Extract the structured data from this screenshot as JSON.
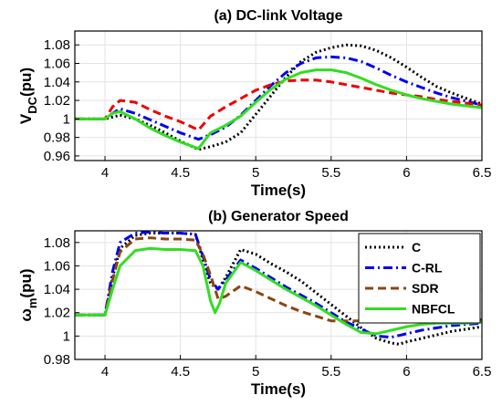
{
  "chart_data": [
    {
      "type": "line",
      "title": "(a) DC-link Voltage",
      "xlabel": "Time(s)",
      "ylabel": "V_DC(pu)",
      "xlim": [
        3.8,
        6.5
      ],
      "ylim": [
        0.955,
        1.095
      ],
      "xticks": [
        "4",
        "4.5",
        "5",
        "5.5",
        "6",
        "6.5"
      ],
      "yticks": [
        "0.96",
        "0.98",
        "1",
        "1.02",
        "1.04",
        "1.06",
        "1.08"
      ],
      "grid": true,
      "series": [
        {
          "color": "#000000",
          "dash": "dot",
          "x": [
            3.8,
            4.0,
            4.05,
            4.1,
            4.2,
            4.3,
            4.4,
            4.5,
            4.62,
            4.7,
            4.8,
            4.9,
            5.0,
            5.1,
            5.2,
            5.3,
            5.4,
            5.5,
            5.6,
            5.7,
            5.8,
            5.9,
            6.0,
            6.1,
            6.2,
            6.3,
            6.4,
            6.5
          ],
          "values": [
            1.0,
            1.0,
            1.002,
            1.004,
            1.0,
            0.993,
            0.985,
            0.976,
            0.967,
            0.97,
            0.975,
            0.985,
            1.005,
            1.025,
            1.045,
            1.062,
            1.072,
            1.077,
            1.08,
            1.079,
            1.074,
            1.066,
            1.056,
            1.045,
            1.035,
            1.028,
            1.022,
            1.016
          ]
        },
        {
          "color": "#0000ee",
          "dash": "dashdot",
          "x": [
            3.8,
            4.0,
            4.05,
            4.1,
            4.2,
            4.3,
            4.4,
            4.5,
            4.62,
            4.7,
            4.8,
            4.9,
            5.0,
            5.1,
            5.2,
            5.3,
            5.4,
            5.5,
            5.6,
            5.7,
            5.8,
            5.9,
            6.0,
            6.1,
            6.2,
            6.3,
            6.4,
            6.5
          ],
          "values": [
            1.0,
            1.0,
            1.006,
            1.011,
            1.006,
            0.999,
            0.992,
            0.985,
            0.978,
            0.983,
            0.991,
            1.004,
            1.02,
            1.036,
            1.05,
            1.06,
            1.066,
            1.067,
            1.066,
            1.062,
            1.055,
            1.047,
            1.04,
            1.034,
            1.028,
            1.023,
            1.019,
            1.015
          ]
        },
        {
          "color": "#ee0000",
          "dash": "dash",
          "x": [
            3.8,
            4.0,
            4.05,
            4.1,
            4.2,
            4.3,
            4.4,
            4.5,
            4.62,
            4.7,
            4.8,
            4.9,
            5.0,
            5.1,
            5.2,
            5.3,
            5.4,
            5.5,
            5.6,
            5.7,
            5.8,
            5.9,
            6.0,
            6.1,
            6.2,
            6.3,
            6.4,
            6.5
          ],
          "values": [
            1.0,
            1.0,
            1.013,
            1.02,
            1.018,
            1.01,
            1.003,
            0.997,
            0.988,
            1.003,
            1.013,
            1.022,
            1.031,
            1.037,
            1.041,
            1.042,
            1.042,
            1.04,
            1.037,
            1.034,
            1.031,
            1.028,
            1.026,
            1.024,
            1.021,
            1.019,
            1.017,
            1.015
          ]
        },
        {
          "color": "#33dd22",
          "dash": "solid",
          "x": [
            3.8,
            4.0,
            4.05,
            4.1,
            4.2,
            4.3,
            4.4,
            4.5,
            4.62,
            4.7,
            4.8,
            4.9,
            5.0,
            5.1,
            5.2,
            5.3,
            5.4,
            5.5,
            5.6,
            5.7,
            5.8,
            5.9,
            6.0,
            6.1,
            6.2,
            6.3,
            6.4,
            6.5
          ],
          "values": [
            1.0,
            1.0,
            1.006,
            1.008,
            1.0,
            0.99,
            0.982,
            0.975,
            0.968,
            0.985,
            0.993,
            1.003,
            1.018,
            1.032,
            1.043,
            1.05,
            1.053,
            1.053,
            1.05,
            1.044,
            1.037,
            1.031,
            1.026,
            1.022,
            1.019,
            1.016,
            1.014,
            1.012
          ]
        }
      ]
    },
    {
      "type": "line",
      "title": "(b) Generator Speed",
      "xlabel": "Time(s)",
      "ylabel": "ω_m(pu)",
      "xlim": [
        3.8,
        6.5
      ],
      "ylim": [
        0.98,
        1.09
      ],
      "xticks": [
        "4",
        "4.5",
        "5",
        "5.5",
        "6",
        "6.5"
      ],
      "yticks": [
        "0.98",
        "1",
        "1.02",
        "1.04",
        "1.06",
        "1.08"
      ],
      "grid": true,
      "legend": "top-right",
      "series": [
        {
          "name": "C",
          "color": "#000000",
          "dash": "dot",
          "x": [
            3.8,
            4.0,
            4.05,
            4.1,
            4.2,
            4.3,
            4.4,
            4.5,
            4.6,
            4.65,
            4.7,
            4.75,
            4.8,
            4.9,
            5.0,
            5.1,
            5.2,
            5.3,
            5.4,
            5.5,
            5.6,
            5.7,
            5.8,
            5.9,
            5.95,
            6.0,
            6.1,
            6.2,
            6.3,
            6.4,
            6.5
          ],
          "values": [
            1.018,
            1.018,
            1.05,
            1.075,
            1.086,
            1.088,
            1.088,
            1.088,
            1.087,
            1.065,
            1.045,
            1.04,
            1.05,
            1.074,
            1.07,
            1.062,
            1.055,
            1.047,
            1.037,
            1.027,
            1.017,
            1.007,
            0.998,
            0.994,
            0.993,
            0.995,
            0.998,
            1.001,
            1.004,
            1.006,
            1.008
          ]
        },
        {
          "name": "C-RL",
          "color": "#0000ee",
          "dash": "dashdot",
          "x": [
            3.8,
            4.0,
            4.05,
            4.1,
            4.2,
            4.3,
            4.4,
            4.5,
            4.6,
            4.65,
            4.7,
            4.75,
            4.8,
            4.9,
            5.0,
            5.1,
            5.2,
            5.3,
            5.4,
            5.5,
            5.6,
            5.7,
            5.8,
            5.9,
            6.0,
            6.1,
            6.2,
            6.3,
            6.4,
            6.5
          ],
          "values": [
            1.018,
            1.018,
            1.055,
            1.08,
            1.088,
            1.089,
            1.088,
            1.088,
            1.087,
            1.068,
            1.048,
            1.04,
            1.048,
            1.065,
            1.058,
            1.05,
            1.042,
            1.035,
            1.028,
            1.02,
            1.012,
            1.006,
            1.0,
            0.999,
            1.002,
            1.005,
            1.007,
            1.009,
            1.01,
            1.011
          ]
        },
        {
          "name": "SDR",
          "color": "#8b4513",
          "dash": "dash",
          "x": [
            3.8,
            4.0,
            4.05,
            4.1,
            4.2,
            4.3,
            4.4,
            4.5,
            4.6,
            4.65,
            4.7,
            4.75,
            4.8,
            4.9,
            5.0,
            5.1,
            5.2,
            5.3,
            5.4,
            5.5,
            5.6,
            5.7,
            5.8,
            5.9,
            6.0,
            6.1,
            6.2,
            6.3,
            6.4,
            6.5
          ],
          "values": [
            1.018,
            1.018,
            1.048,
            1.072,
            1.083,
            1.084,
            1.083,
            1.083,
            1.082,
            1.07,
            1.052,
            1.032,
            1.034,
            1.043,
            1.038,
            1.032,
            1.026,
            1.021,
            1.017,
            1.013,
            1.013,
            1.013,
            1.013,
            1.013,
            1.014,
            1.014,
            1.014,
            1.014,
            1.014,
            1.014
          ]
        },
        {
          "name": "NBFCL",
          "color": "#33dd22",
          "dash": "solid",
          "x": [
            3.8,
            4.0,
            4.05,
            4.1,
            4.2,
            4.3,
            4.4,
            4.5,
            4.6,
            4.65,
            4.7,
            4.73,
            4.76,
            4.8,
            4.9,
            5.0,
            5.1,
            5.2,
            5.3,
            5.4,
            5.5,
            5.6,
            5.7,
            5.8,
            5.9,
            6.0,
            6.1,
            6.2,
            6.3,
            6.4,
            6.5
          ],
          "values": [
            1.018,
            1.018,
            1.04,
            1.06,
            1.073,
            1.075,
            1.074,
            1.074,
            1.073,
            1.06,
            1.03,
            1.02,
            1.028,
            1.045,
            1.063,
            1.056,
            1.048,
            1.04,
            1.033,
            1.026,
            1.018,
            1.01,
            1.003,
            1.002,
            1.005,
            1.008,
            1.01,
            1.011,
            1.011,
            1.011,
            1.012
          ]
        }
      ]
    }
  ]
}
